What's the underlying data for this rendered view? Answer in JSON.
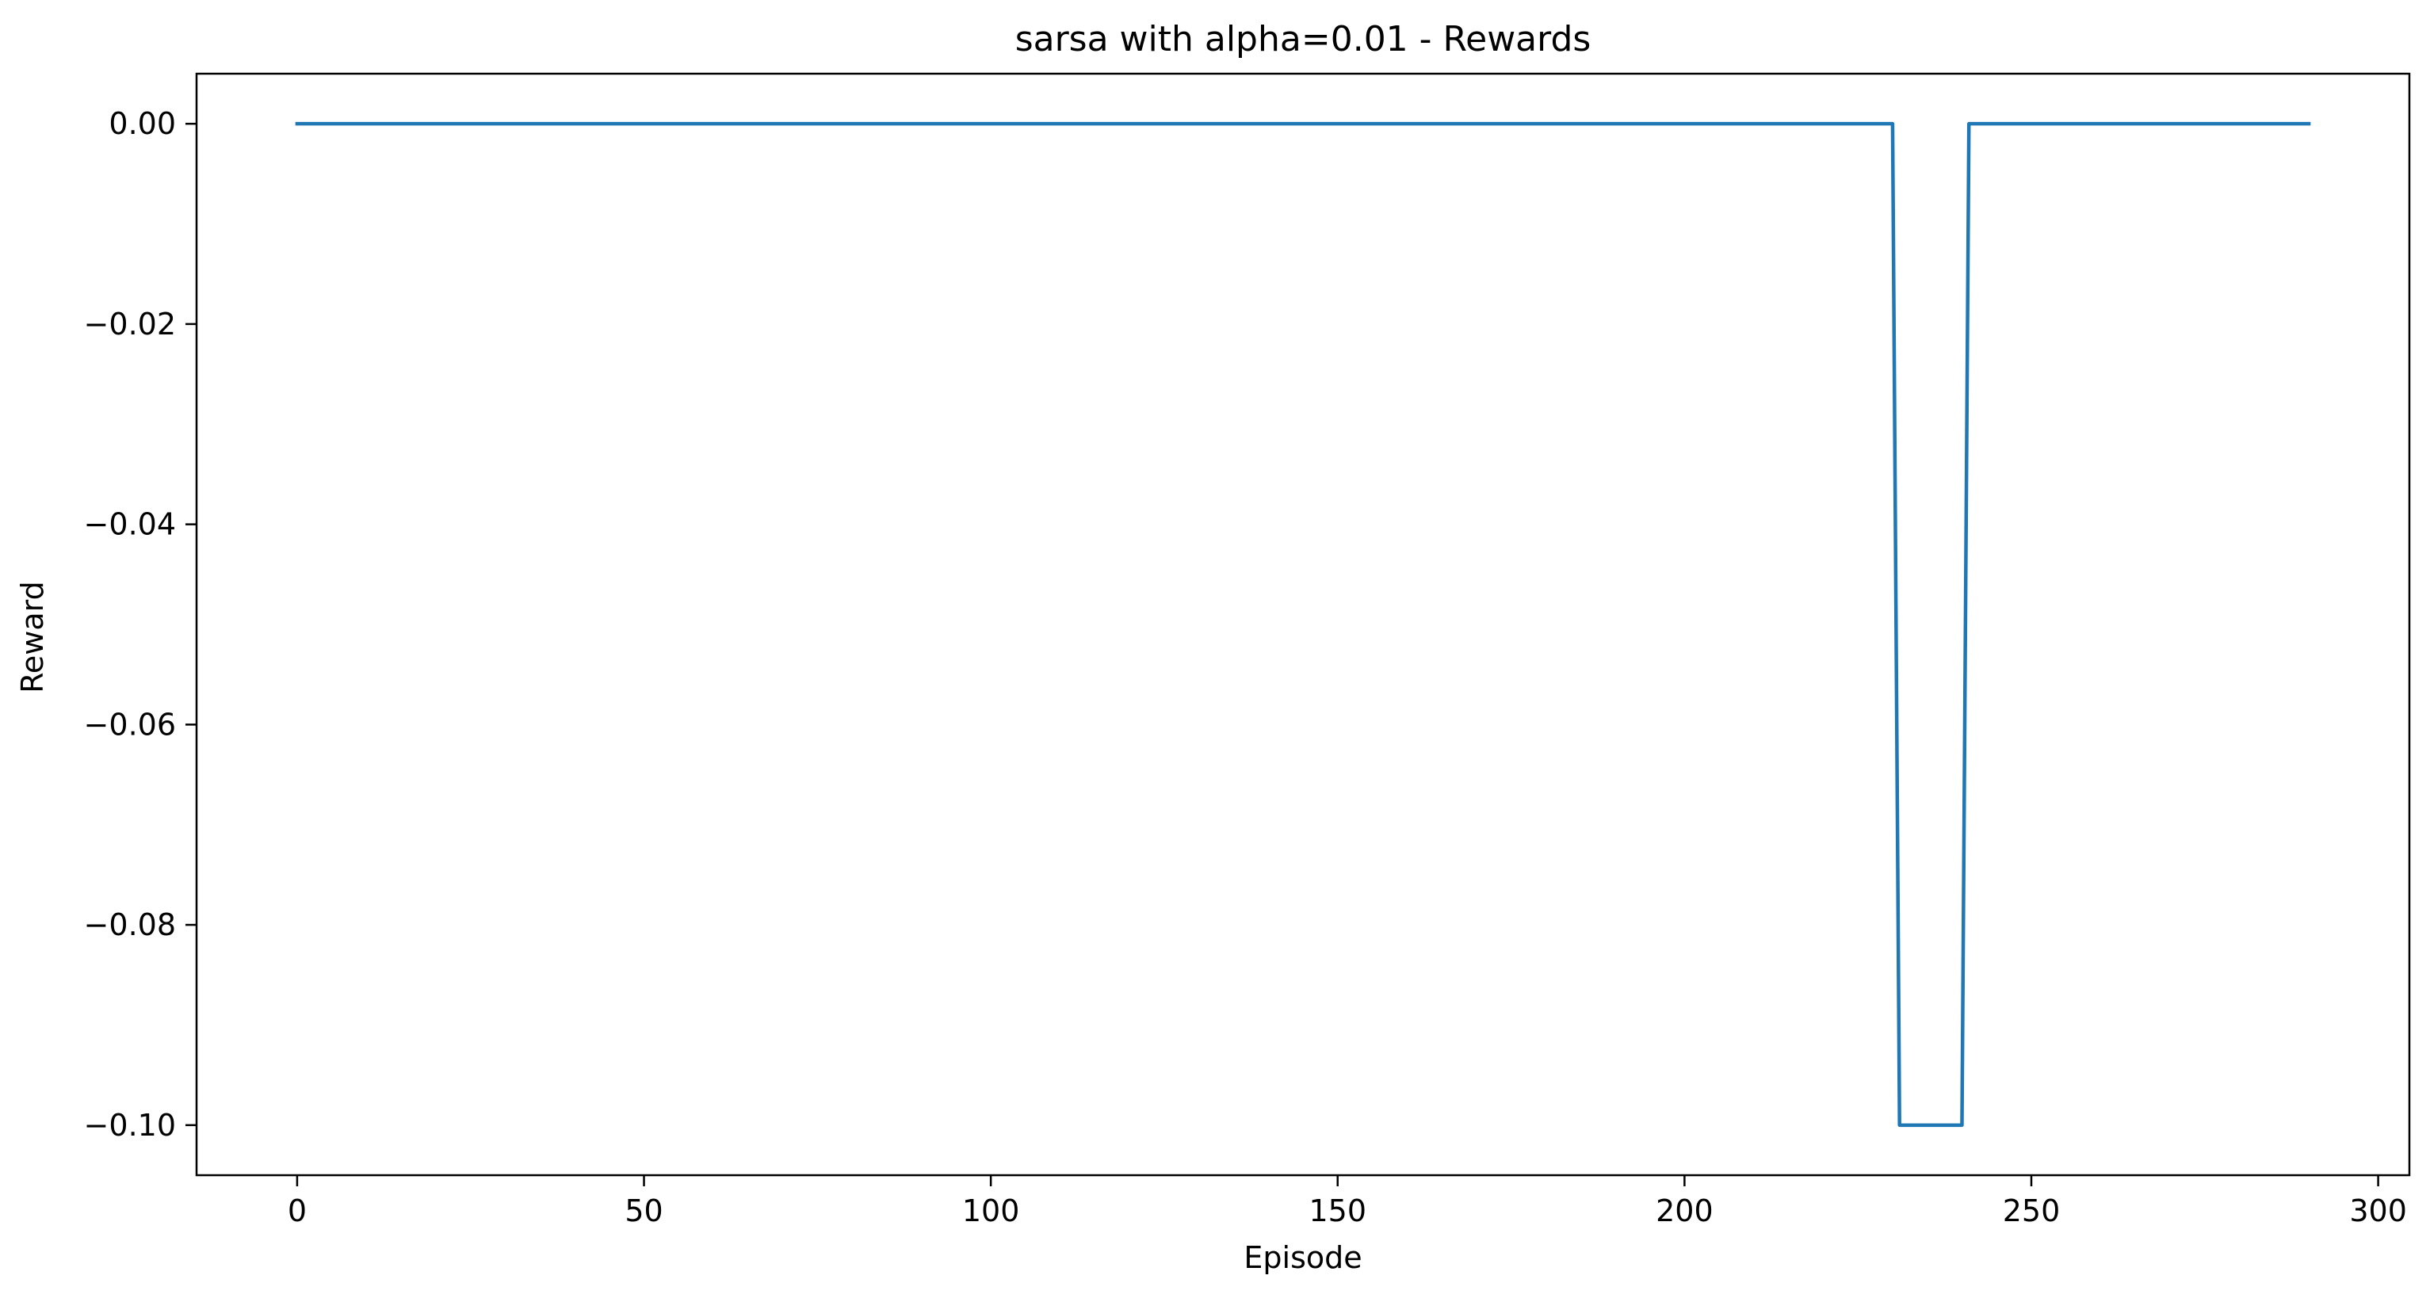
{
  "chart_data": {
    "type": "line",
    "title": "sarsa with alpha=0.01 - Rewards",
    "xlabel": "Episode",
    "ylabel": "Reward",
    "xlim": [
      -14.5,
      304.5
    ],
    "ylim": [
      -0.105,
      0.005
    ],
    "x_ticks": [
      0,
      50,
      100,
      150,
      200,
      250,
      300
    ],
    "y_ticks": [
      0.0,
      -0.02,
      -0.04,
      -0.06,
      -0.08,
      -0.1
    ],
    "x_tick_labels": [
      "0",
      "50",
      "100",
      "150",
      "200",
      "250",
      "300"
    ],
    "y_tick_labels": [
      "0.00",
      "−0.02",
      "−0.04",
      "−0.06",
      "−0.08",
      "−0.10"
    ],
    "grid": false,
    "legend": "none",
    "series": [
      {
        "color": "#1f77b4",
        "x": [
          0,
          230,
          231,
          240,
          241,
          290
        ],
        "y": [
          0.0,
          0.0,
          -0.1,
          -0.1,
          0.0,
          0.0
        ]
      }
    ]
  }
}
